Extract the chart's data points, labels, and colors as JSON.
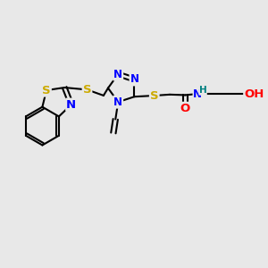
{
  "bg_color": "#e8e8e8",
  "bond_color": "#000000",
  "bond_width": 1.5,
  "atom_colors": {
    "C": "#000000",
    "N": "#0000ff",
    "S": "#ccaa00",
    "O": "#ff0000",
    "H": "#008080"
  }
}
